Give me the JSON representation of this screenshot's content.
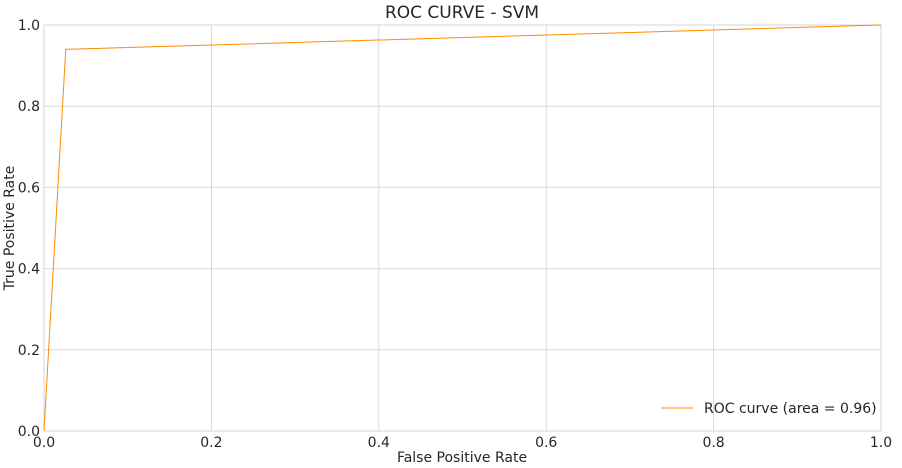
{
  "chart_data": {
    "type": "line",
    "title": "ROC CURVE - SVM",
    "xlabel": "False Positive Rate",
    "ylabel": "True Positive Rate",
    "xlim": [
      0.0,
      1.0
    ],
    "ylim": [
      0.0,
      1.0
    ],
    "xticks": [
      0.0,
      0.2,
      0.4,
      0.6,
      0.8,
      1.0
    ],
    "yticks": [
      0.0,
      0.2,
      0.4,
      0.6,
      0.8,
      1.0
    ],
    "xtick_labels": [
      "0.0",
      "0.2",
      "0.4",
      "0.6",
      "0.8",
      "1.0"
    ],
    "ytick_labels": [
      "0.0",
      "0.2",
      "0.4",
      "0.6",
      "0.8",
      "1.0"
    ],
    "grid": true,
    "legend_position": "lower-right",
    "series": [
      {
        "name": "ROC curve (area = 0.96)",
        "color": "#ff8c00",
        "x": [
          0.0,
          0.026,
          1.0
        ],
        "y": [
          0.0,
          0.94,
          1.0
        ]
      }
    ]
  }
}
